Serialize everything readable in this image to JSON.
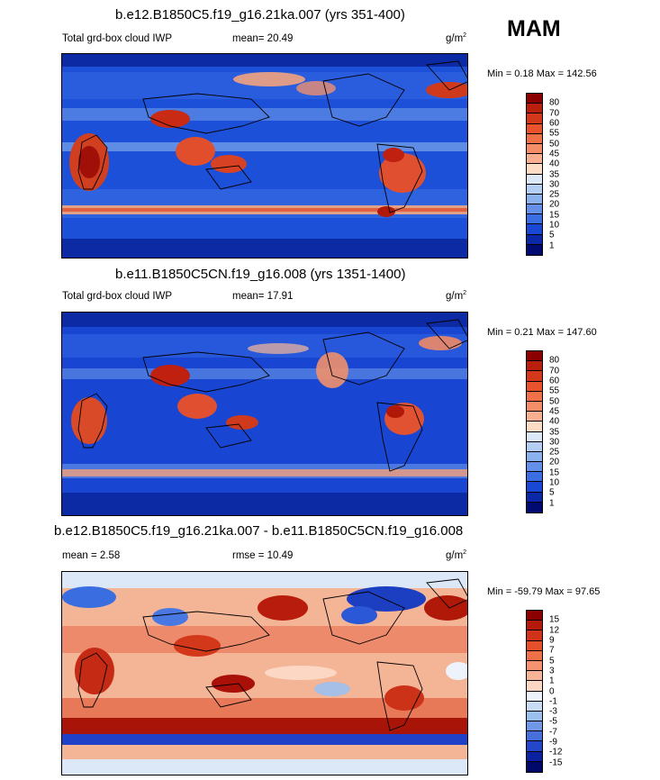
{
  "season": "MAM",
  "panels": [
    {
      "title": "b.e12.B1850C5.f19_g16.21ka.007 (yrs 351-400)",
      "left_label": "Total grd-box cloud IWP",
      "mean_label": "mean=  20.49",
      "extra_label": "",
      "units": "g/m",
      "units_sup": "2",
      "minmax": "Min =   0.18 Max = 142.56",
      "colorbar_labels": [
        "80",
        "70",
        "60",
        "55",
        "50",
        "45",
        "40",
        "35",
        "30",
        "25",
        "20",
        "15",
        "10",
        "5",
        "1"
      ],
      "colorbar_colors": [
        "#8b0000",
        "#b8200d",
        "#d4381a",
        "#e8532e",
        "#f07048",
        "#f48d68",
        "#f8b090",
        "#fcdcc4",
        "#dce8f8",
        "#b4cef4",
        "#8cb2ee",
        "#6490ea",
        "#3a6ee2",
        "#1848d4",
        "#0a28a8",
        "#000a70"
      ]
    },
    {
      "title": "b.e11.B1850C5CN.f19_g16.008 (yrs 1351-1400)",
      "left_label": "Total grd-box cloud IWP",
      "mean_label": "mean=  17.91",
      "extra_label": "",
      "units": "g/m",
      "units_sup": "2",
      "minmax": "Min =   0.21 Max = 147.60",
      "colorbar_labels": [
        "80",
        "70",
        "60",
        "55",
        "50",
        "45",
        "40",
        "35",
        "30",
        "25",
        "20",
        "15",
        "10",
        "5",
        "1"
      ],
      "colorbar_colors": [
        "#8b0000",
        "#b8200d",
        "#d4381a",
        "#e8532e",
        "#f07048",
        "#f48d68",
        "#f8b090",
        "#fcdcc4",
        "#dce8f8",
        "#b4cef4",
        "#8cb2ee",
        "#6490ea",
        "#3a6ee2",
        "#1848d4",
        "#0a28a8",
        "#000a70"
      ]
    },
    {
      "title": "b.e12.B1850C5.f19_g16.21ka.007 - b.e11.B1850C5CN.f19_g16.008",
      "left_label": "mean =   2.58",
      "mean_label": "",
      "extra_label": "rmse =  10.49",
      "units": "g/m",
      "units_sup": "2",
      "minmax": "Min = -59.79 Max =  97.65",
      "colorbar_labels": [
        "15",
        "12",
        "9",
        "7",
        "5",
        "3",
        "1",
        "0",
        "-1",
        "-3",
        "-5",
        "-7",
        "-9",
        "-12",
        "-15"
      ],
      "colorbar_colors": [
        "#8b0000",
        "#b41a0c",
        "#d0321a",
        "#e4502c",
        "#f07048",
        "#f49272",
        "#f8b496",
        "#fcd8c4",
        "#eef2fa",
        "#c8dcf4",
        "#9cc0ee",
        "#7098e6",
        "#4870da",
        "#2446c8",
        "#0a22a0",
        "#00086a"
      ]
    }
  ]
}
